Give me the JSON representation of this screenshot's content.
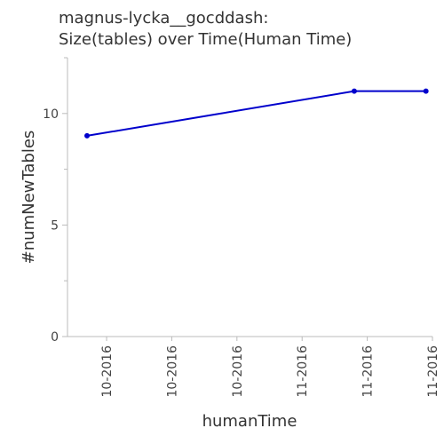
{
  "chart_data": {
    "type": "line",
    "title_lines": [
      "magnus-lycka__gocddash:",
      "Size(tables) over Time(Human Time)"
    ],
    "xlabel": "humanTime",
    "ylabel": "#numNewTables",
    "x_tick_labels": [
      "10-2016",
      "10-2016",
      "10-2016",
      "11-2016",
      "11-2016",
      "11-2016"
    ],
    "y_ticks": [
      0,
      5,
      10
    ],
    "y_tick_labels": [
      "0",
      "5",
      "10"
    ],
    "ylim": [
      0,
      12.5
    ],
    "grid": false,
    "series": [
      {
        "color": "#0000cc",
        "points": [
          {
            "x": "2016-09-24",
            "y": 9
          },
          {
            "x": "2016-11-04",
            "y": 11
          },
          {
            "x": "2016-11-15",
            "y": 11
          }
        ]
      }
    ]
  }
}
